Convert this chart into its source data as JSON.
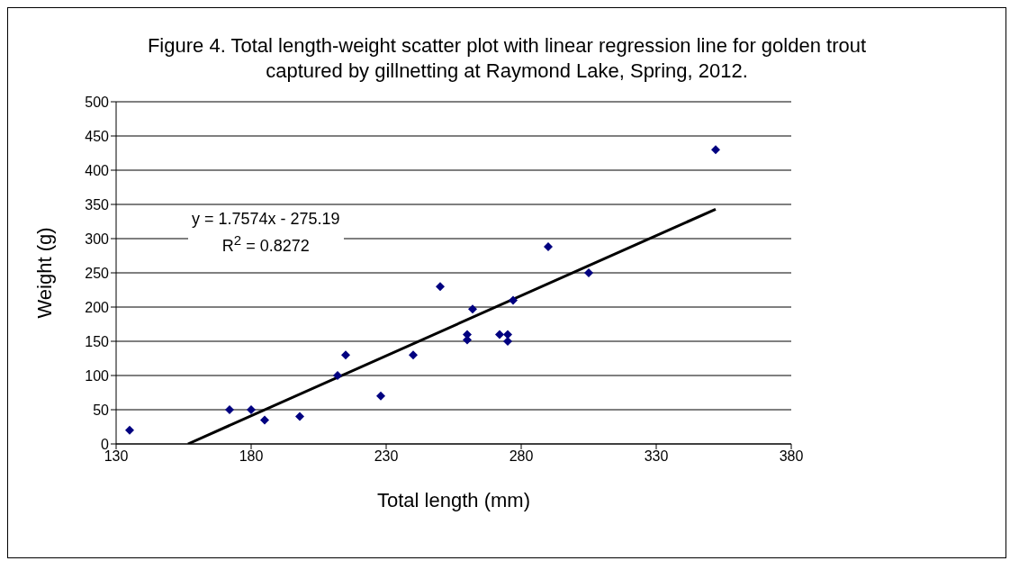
{
  "chart_data": {
    "type": "scatter",
    "title": "Figure 4.  Total length-weight scatter plot with linear regression line for golden trout captured by gillnetting at Raymond Lake, Spring, 2012.",
    "xlabel": "Total length (mm)",
    "ylabel": "Weight (g)",
    "xlim": [
      130,
      380
    ],
    "xticks": [
      130,
      180,
      230,
      280,
      330,
      380
    ],
    "ylim": [
      0,
      500
    ],
    "yticks": [
      0,
      50,
      100,
      150,
      200,
      250,
      300,
      350,
      400,
      450,
      500
    ],
    "grid": "y",
    "legend": false,
    "series": [
      {
        "marker": "diamond",
        "color": "#000080",
        "x": [
          135,
          172,
          180,
          185,
          198,
          212,
          215,
          228,
          240,
          250,
          260,
          260,
          262,
          272,
          275,
          275,
          277,
          290,
          305,
          352
        ],
        "values": [
          20,
          50,
          50,
          35,
          40,
          100,
          130,
          70,
          130,
          230,
          160,
          152,
          197,
          160,
          160,
          150,
          210,
          288,
          250,
          430
        ]
      },
      {
        "type": "line",
        "color": "#000000",
        "line_style": "solid",
        "x": [
          156.6,
          352
        ],
        "values": [
          0,
          343
        ]
      }
    ],
    "annotations": [
      "y = 1.7574x - 275.19\nR$^{2}$ = 0.8272"
    ]
  }
}
